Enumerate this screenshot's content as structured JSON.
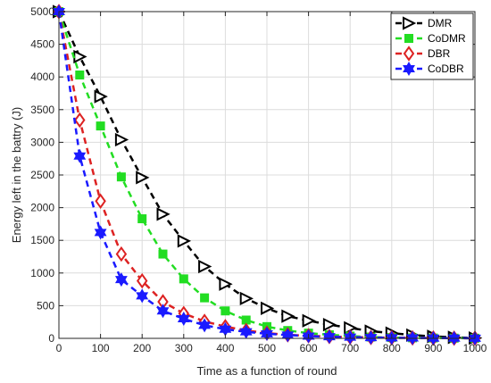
{
  "chart_data": {
    "type": "line",
    "title": "",
    "xlabel": "Time as a function of round",
    "ylabel": "Energy left in the battry (J)",
    "xlim": [
      0,
      1000
    ],
    "ylim": [
      0,
      5000
    ],
    "xticks": [
      0,
      100,
      200,
      300,
      400,
      500,
      600,
      700,
      800,
      900,
      1000
    ],
    "yticks": [
      0,
      500,
      1000,
      1500,
      2000,
      2500,
      3000,
      3500,
      4000,
      4500,
      5000
    ],
    "grid": true,
    "legend_position": "top-right",
    "series": [
      {
        "name": "DMR",
        "color": "#000000",
        "marker": "triangle-right",
        "x": [
          0,
          50,
          100,
          150,
          200,
          250,
          300,
          350,
          400,
          450,
          500,
          550,
          600,
          650,
          700,
          750,
          800,
          850,
          900,
          950,
          1000
        ],
        "y": [
          5000,
          4310,
          3700,
          3040,
          2460,
          1900,
          1490,
          1100,
          830,
          610,
          460,
          340,
          270,
          210,
          160,
          110,
          80,
          50,
          30,
          15,
          5
        ]
      },
      {
        "name": "CoDMR",
        "color": "#22dd22",
        "marker": "square",
        "x": [
          0,
          50,
          100,
          150,
          200,
          250,
          300,
          350,
          400,
          450,
          500,
          550,
          600,
          650,
          700,
          750,
          800,
          850,
          900,
          950,
          1000
        ],
        "y": [
          5000,
          4030,
          3250,
          2470,
          1830,
          1290,
          910,
          620,
          420,
          280,
          180,
          120,
          80,
          55,
          35,
          20,
          12,
          8,
          5,
          3,
          2
        ]
      },
      {
        "name": "DBR",
        "color": "#dd2222",
        "marker": "diamond",
        "x": [
          0,
          50,
          100,
          150,
          200,
          250,
          300,
          350,
          400,
          450,
          500,
          550,
          600,
          650,
          700,
          750,
          800,
          850,
          900,
          950,
          1000
        ],
        "y": [
          5000,
          3340,
          2100,
          1290,
          880,
          560,
          380,
          260,
          180,
          120,
          80,
          55,
          40,
          28,
          20,
          14,
          10,
          7,
          5,
          3,
          2
        ]
      },
      {
        "name": "CoDBR",
        "color": "#1a1aff",
        "marker": "hexagram",
        "x": [
          0,
          50,
          100,
          150,
          200,
          250,
          300,
          350,
          400,
          450,
          500,
          550,
          600,
          650,
          700,
          750,
          800,
          850,
          900,
          950,
          1000
        ],
        "y": [
          5000,
          2790,
          1620,
          900,
          650,
          420,
          300,
          200,
          140,
          100,
          70,
          50,
          35,
          25,
          18,
          12,
          8,
          6,
          4,
          3,
          2
        ]
      }
    ]
  }
}
